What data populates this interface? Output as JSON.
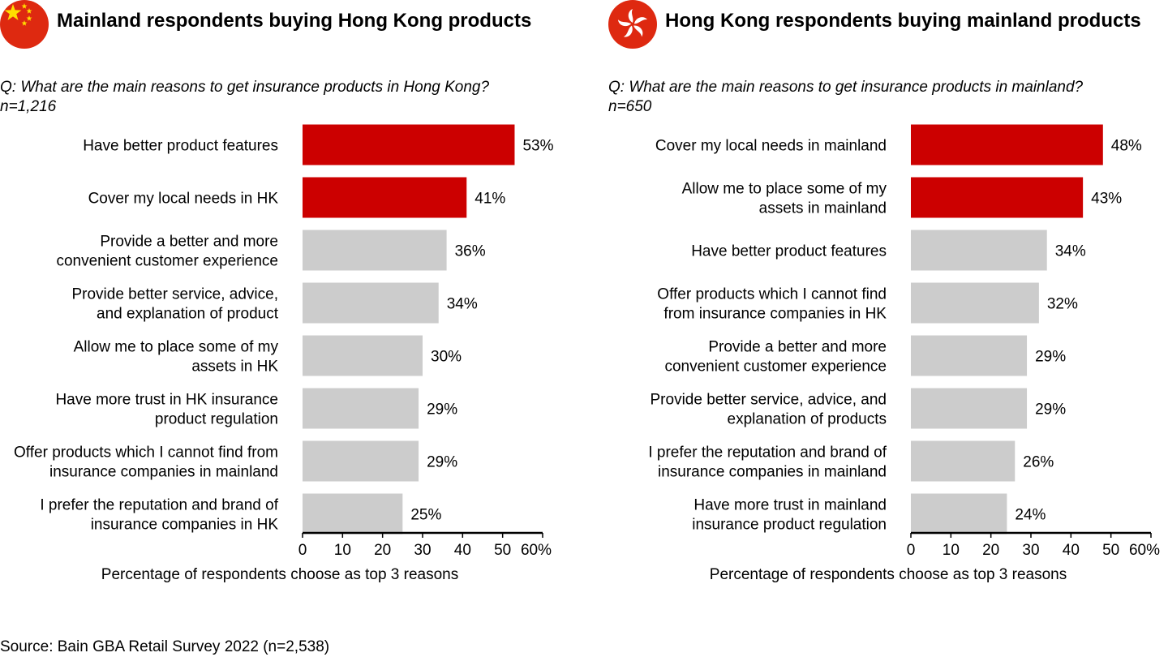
{
  "source": "Source: Bain GBA Retail Survey 2022 (n=2,538)",
  "colors": {
    "highlight": "#cc0000",
    "neutral": "#cccccc",
    "axis": "#000000"
  },
  "panels": [
    {
      "flag_icon": "china-flag-icon",
      "title": "Mainland respondents buying Hong Kong products",
      "question": "Q:  What are the main reasons to get insurance products in Hong Kong?",
      "sample": "n=1,216"
    },
    {
      "flag_icon": "hong-kong-flag-icon",
      "title": "Hong Kong respondents buying mainland products",
      "question": "Q:  What are the main reasons to get insurance products in mainland?",
      "sample": "n=650"
    }
  ],
  "chart_data": [
    {
      "type": "bar",
      "orientation": "horizontal",
      "categories": [
        [
          "Have better product features"
        ],
        [
          "Cover my local needs in HK"
        ],
        [
          "Provide a better and more",
          "convenient customer experience"
        ],
        [
          "Provide better service, advice,",
          "and explanation of product"
        ],
        [
          "Allow me to place some of my",
          "assets in HK"
        ],
        [
          "Have more trust in HK insurance",
          "product regulation"
        ],
        [
          "Offer products which I cannot find from",
          "insurance companies in mainland"
        ],
        [
          "I prefer the reputation and brand of",
          "insurance companies in HK"
        ]
      ],
      "values": [
        53,
        41,
        36,
        34,
        30,
        29,
        29,
        25
      ],
      "value_labels": [
        "53%",
        "41%",
        "36%",
        "34%",
        "30%",
        "29%",
        "29%",
        "25%"
      ],
      "highlighted": [
        true,
        true,
        false,
        false,
        false,
        false,
        false,
        false
      ],
      "xlim": [
        0,
        60
      ],
      "xticks": [
        "0",
        "10",
        "20",
        "30",
        "40",
        "50",
        "60%"
      ],
      "xlabel": "Percentage of respondents choose as top 3 reasons"
    },
    {
      "type": "bar",
      "orientation": "horizontal",
      "categories": [
        [
          "Cover my local needs in mainland"
        ],
        [
          "Allow me to place some of my",
          "assets in mainland"
        ],
        [
          "Have better product features"
        ],
        [
          "Offer products which I cannot find",
          "from insurance companies in HK"
        ],
        [
          "Provide a better and more",
          "convenient customer experience"
        ],
        [
          "Provide better service, advice, and",
          "explanation of products"
        ],
        [
          "I prefer the reputation and brand of",
          "insurance companies in mainland"
        ],
        [
          "Have more trust in mainland",
          "insurance product regulation"
        ]
      ],
      "values": [
        48,
        43,
        34,
        32,
        29,
        29,
        26,
        24
      ],
      "value_labels": [
        "48%",
        "43%",
        "34%",
        "32%",
        "29%",
        "29%",
        "26%",
        "24%"
      ],
      "highlighted": [
        true,
        true,
        false,
        false,
        false,
        false,
        false,
        false
      ],
      "xlim": [
        0,
        60
      ],
      "xticks": [
        "0",
        "10",
        "20",
        "30",
        "40",
        "50",
        "60%"
      ],
      "xlabel": "Percentage of respondents choose as top 3 reasons"
    }
  ]
}
